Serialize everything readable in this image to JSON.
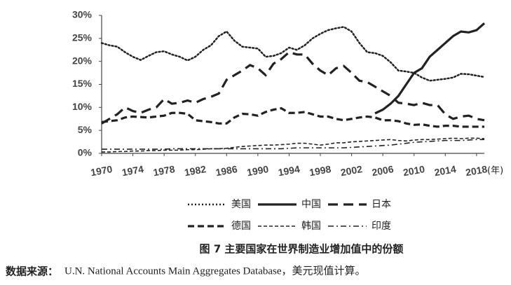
{
  "chart_data": {
    "type": "line",
    "title": "图 7   主要国家在世界制造业增加值中的份额",
    "source_label": "数据来源：",
    "source": "U.N. National Accounts Main Aggregates Database，美元现值计算。",
    "x_unit": "(年)",
    "x": [
      1970,
      1971,
      1972,
      1973,
      1974,
      1975,
      1976,
      1977,
      1978,
      1979,
      1980,
      1981,
      1982,
      1983,
      1984,
      1985,
      1986,
      1987,
      1988,
      1989,
      1990,
      1991,
      1992,
      1993,
      1994,
      1995,
      1996,
      1997,
      1998,
      1999,
      2000,
      2001,
      2002,
      2003,
      2004,
      2005,
      2006,
      2007,
      2008,
      2009,
      2010,
      2011,
      2012,
      2013,
      2014,
      2015,
      2016,
      2017,
      2018,
      2019
    ],
    "xlim": [
      1970,
      2019
    ],
    "xticks": [
      1970,
      1974,
      1978,
      1982,
      1986,
      1990,
      1994,
      1998,
      2002,
      2006,
      2010,
      2014,
      2018
    ],
    "ylim": [
      0,
      30
    ],
    "yticks": [
      {
        "value": 0,
        "label": "0%"
      },
      {
        "value": 5,
        "label": "5%"
      },
      {
        "value": 10,
        "label": "10%"
      },
      {
        "value": 15,
        "label": "15%"
      },
      {
        "value": 20,
        "label": "20%"
      },
      {
        "value": 25,
        "label": "25%"
      },
      {
        "value": 30,
        "label": "30%"
      }
    ],
    "grid": false,
    "series": [
      {
        "name": "美国",
        "color": "#222222",
        "dash": "dotted",
        "values": [
          24,
          23.5,
          23.2,
          22,
          21,
          20.3,
          21.2,
          22,
          22.2,
          21.5,
          21,
          20.2,
          21,
          22.5,
          23.5,
          25.5,
          26.5,
          24.5,
          23.2,
          23,
          22.8,
          21,
          21.2,
          21.8,
          23,
          22.5,
          23.5,
          25,
          26,
          26.8,
          27.2,
          27.5,
          26.5,
          24,
          22,
          21.8,
          21.2,
          19.8,
          18,
          17.8,
          17.5,
          16.5,
          15.8,
          16,
          16.2,
          16.5,
          17.3,
          17.2,
          16.9,
          16.6
        ]
      },
      {
        "name": "中国",
        "color": "#222222",
        "dash": "solid",
        "values": [
          null,
          null,
          null,
          null,
          null,
          null,
          null,
          null,
          null,
          null,
          null,
          null,
          null,
          null,
          null,
          null,
          null,
          null,
          null,
          null,
          null,
          null,
          null,
          null,
          null,
          null,
          null,
          null,
          null,
          null,
          null,
          null,
          null,
          null,
          null,
          8.7,
          9.5,
          10.8,
          12.5,
          15,
          17.5,
          18.5,
          21,
          22.5,
          24,
          25.5,
          26.5,
          26.3,
          26.8,
          28.3
        ]
      },
      {
        "name": "日本",
        "color": "#222222",
        "dash": "long-dash",
        "values": [
          6.5,
          7.5,
          8.5,
          10,
          9.2,
          8.8,
          9.5,
          10,
          11.8,
          10.8,
          11,
          11.5,
          11,
          11.8,
          12.3,
          13,
          16,
          17,
          18,
          19.2,
          18.5,
          17,
          19.5,
          20.5,
          22,
          21.5,
          21.5,
          19.5,
          18,
          17,
          18.5,
          19,
          17.5,
          15.8,
          15.5,
          14.5,
          13.5,
          12.5,
          11,
          10.8,
          10.5,
          11,
          10.5,
          10.5,
          8.5,
          7.5,
          8,
          8.2,
          7.5,
          7.2
        ]
      },
      {
        "name": "德国",
        "color": "#222222",
        "dash": "dash",
        "values": [
          6.8,
          7,
          7.2,
          7.8,
          8,
          7.9,
          7.8,
          8,
          8.2,
          8.8,
          8.8,
          8.6,
          7.2,
          7,
          6.8,
          6.5,
          6.5,
          7.8,
          8.6,
          8.5,
          8.2,
          9,
          9.5,
          9.8,
          8.8,
          8.8,
          9,
          8.5,
          8,
          8,
          7.5,
          7.2,
          7.5,
          7.8,
          8,
          7.8,
          7.2,
          7.2,
          7,
          6.5,
          6.2,
          6.3,
          6,
          5.8,
          6,
          6,
          5.8,
          5.8,
          5.8,
          5.8
        ]
      },
      {
        "name": "韩国",
        "color": "#222222",
        "dash": "short-dash",
        "values": [
          0.3,
          0.3,
          0.4,
          0.4,
          0.5,
          0.5,
          0.6,
          0.6,
          0.7,
          0.7,
          0.7,
          0.8,
          0.8,
          0.9,
          1,
          1,
          1.1,
          1.3,
          1.5,
          1.6,
          1.7,
          1.8,
          1.8,
          1.9,
          2,
          2.2,
          2.2,
          2,
          1.8,
          2,
          2.3,
          2.3,
          2.5,
          2.6,
          2.7,
          2.8,
          2.9,
          3,
          2.8,
          2.7,
          2.9,
          3,
          3,
          3.1,
          3.2,
          3.3,
          3.2,
          3.3,
          3.3,
          3.2
        ]
      },
      {
        "name": "印度",
        "color": "#222222",
        "dash": "dash-dot",
        "values": [
          0.9,
          0.9,
          0.9,
          0.9,
          0.9,
          0.9,
          0.9,
          0.9,
          0.9,
          1,
          1,
          1,
          1,
          1,
          1,
          1,
          1,
          1,
          1,
          1,
          1,
          1,
          1,
          1,
          1.1,
          1.2,
          1.2,
          1.2,
          1.2,
          1.2,
          1.2,
          1.2,
          1.3,
          1.4,
          1.5,
          1.6,
          1.7,
          1.8,
          2,
          2.2,
          2.4,
          2.5,
          2.6,
          2.7,
          2.8,
          2.8,
          2.8,
          2.9,
          3,
          3
        ]
      }
    ]
  }
}
